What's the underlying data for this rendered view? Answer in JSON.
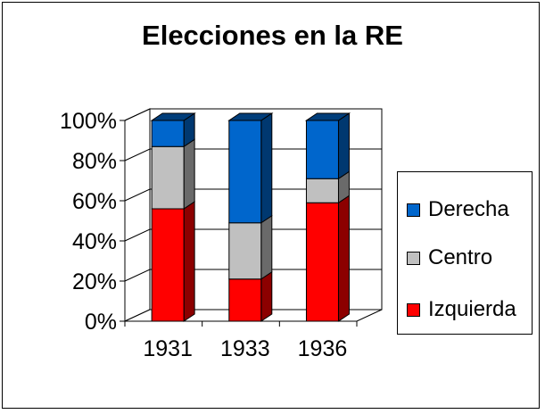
{
  "chart_data": {
    "type": "bar",
    "stacked": true,
    "percent": true,
    "title": "Elecciones en la RE",
    "categories": [
      "1931",
      "1933",
      "1936"
    ],
    "series": [
      {
        "name": "Izquierda",
        "color": "#ff0000",
        "values": [
          56,
          21,
          59
        ]
      },
      {
        "name": "Centro",
        "color": "#c0c0c0",
        "values": [
          31,
          28,
          12
        ]
      },
      {
        "name": "Derecha",
        "color": "#0066cc",
        "values": [
          13,
          51,
          29
        ]
      }
    ],
    "yticks": [
      "0%",
      "20%",
      "40%",
      "60%",
      "80%",
      "100%"
    ],
    "ylim": [
      0,
      100
    ],
    "grid": true,
    "legend_position": "right"
  },
  "legend": {
    "items": [
      "Derecha",
      "Centro",
      "Izquierda"
    ]
  }
}
